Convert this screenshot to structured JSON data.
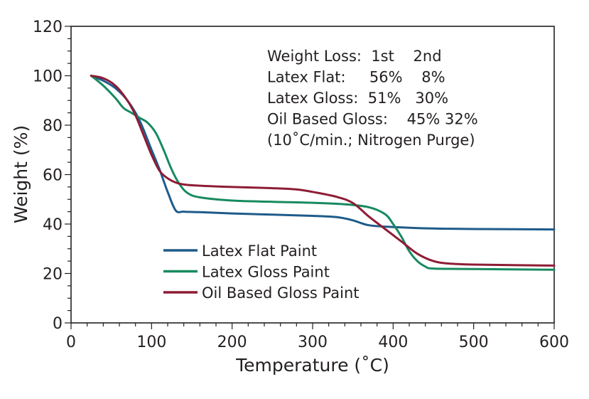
{
  "chart_data": {
    "type": "line",
    "xlabel": "Temperature (˚C)",
    "ylabel": "Weight (%)",
    "xlim": [
      0,
      600
    ],
    "ylim": [
      0,
      120
    ],
    "xticks": [
      "0",
      "100",
      "200",
      "300",
      "400",
      "500",
      "600"
    ],
    "yticks": [
      "0",
      "20",
      "40",
      "60",
      "80",
      "100",
      "120"
    ],
    "grid": false,
    "legend_placement": "lower-left",
    "annotation_lines": [
      "Weight Loss:  1st    2nd",
      "Latex Flat:     56%    8%",
      "Latex Gloss:  51%   30%",
      "Oil Based Gloss:    45% 32%",
      "(10˚C/min.; Nitrogen Purge)"
    ],
    "series": [
      {
        "name": "Latex Flat Paint",
        "color": "#1f5b8a",
        "x": [
          25,
          40,
          55,
          70,
          85,
          100,
          110,
          120,
          130,
          140,
          160,
          200,
          250,
          300,
          330,
          350,
          370,
          400,
          450,
          500,
          600
        ],
        "y": [
          100,
          98,
          95,
          90,
          82,
          70,
          62,
          53,
          45.5,
          45,
          44.8,
          44.3,
          43.8,
          43.3,
          42.8,
          41.5,
          39.5,
          38.8,
          38.2,
          38,
          37.8
        ]
      },
      {
        "name": "Latex Gloss Paint",
        "color": "#178a5f",
        "x": [
          25,
          40,
          55,
          65,
          75,
          85,
          95,
          105,
          115,
          125,
          135,
          145,
          160,
          200,
          250,
          300,
          340,
          370,
          390,
          400,
          410,
          420,
          430,
          440,
          450,
          500,
          600
        ],
        "y": [
          100,
          96,
          91,
          87,
          85,
          83,
          81,
          77,
          70,
          62,
          56,
          52.5,
          50.8,
          49.5,
          49,
          48.6,
          48,
          46.8,
          44,
          40,
          35,
          29,
          25,
          22.8,
          22,
          21.8,
          21.5
        ]
      },
      {
        "name": "Oil Based Gloss Paint",
        "color": "#8e1c35",
        "x": [
          25,
          40,
          55,
          70,
          80,
          90,
          100,
          110,
          120,
          130,
          140,
          160,
          200,
          250,
          280,
          300,
          330,
          350,
          370,
          390,
          410,
          430,
          450,
          470,
          500,
          600
        ],
        "y": [
          100,
          99,
          96,
          90,
          84,
          76,
          68,
          61.5,
          58.5,
          56.8,
          56,
          55.5,
          55,
          54.5,
          54,
          53,
          51,
          48.5,
          43,
          38,
          33,
          28,
          25,
          24,
          23.6,
          23.2
        ]
      }
    ]
  }
}
